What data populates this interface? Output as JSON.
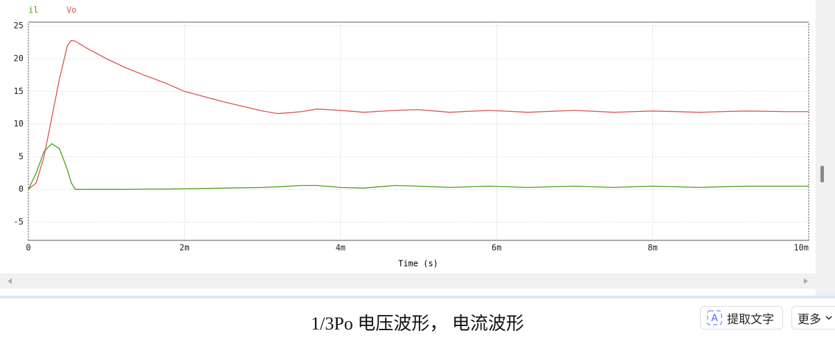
{
  "chart_data": {
    "type": "line",
    "x_label": "Time (s)",
    "x": [
      0,
      0.0001,
      0.0002,
      0.0003,
      0.0004,
      0.0005,
      0.00055,
      0.0006,
      0.00075,
      0.001,
      0.00125,
      0.0015,
      0.00175,
      0.002,
      0.0025,
      0.003,
      0.0032,
      0.0035,
      0.0037,
      0.004,
      0.0043,
      0.0047,
      0.005,
      0.0054,
      0.0059,
      0.0064,
      0.007,
      0.0075,
      0.008,
      0.0086,
      0.0092,
      0.0097,
      0.01
    ],
    "series": [
      {
        "name": "il",
        "color": "#4a9a10",
        "values": [
          0,
          2.5,
          5.8,
          7.0,
          6.2,
          3.0,
          1.0,
          0,
          0,
          0,
          0,
          0.05,
          0.05,
          0.1,
          0.2,
          0.3,
          0.4,
          0.6,
          0.6,
          0.3,
          0.2,
          0.6,
          0.5,
          0.3,
          0.5,
          0.3,
          0.5,
          0.3,
          0.5,
          0.3,
          0.5,
          0.5,
          0.5
        ]
      },
      {
        "name": "Vo",
        "color": "#d95050",
        "values": [
          0,
          1,
          5,
          11,
          17,
          22,
          22.8,
          22.7,
          21.6,
          20.0,
          18.6,
          17.4,
          16.3,
          15.0,
          13.4,
          12.0,
          11.6,
          11.9,
          12.3,
          12.1,
          11.8,
          12.1,
          12.2,
          11.8,
          12.1,
          11.8,
          12.1,
          11.8,
          12.0,
          11.8,
          12.0,
          11.9,
          11.9
        ]
      }
    ],
    "xlim": [
      0,
      0.01
    ],
    "xticks": [
      0,
      {
        "value": 0.002,
        "label": "2m"
      },
      {
        "value": 0.004,
        "label": "4m"
      },
      {
        "value": 0.006,
        "label": "6m"
      },
      {
        "value": 0.008,
        "label": "8m"
      },
      {
        "value": 0.01,
        "label": "10m"
      }
    ],
    "ylim": [
      -7.8,
      25.6
    ],
    "yticks": [
      -5,
      0,
      5,
      10,
      15,
      20,
      25
    ],
    "grid": true
  },
  "caption": "1/3Po 电压波形， 电流波形",
  "buttons": [
    "提取文字",
    "更多"
  ]
}
